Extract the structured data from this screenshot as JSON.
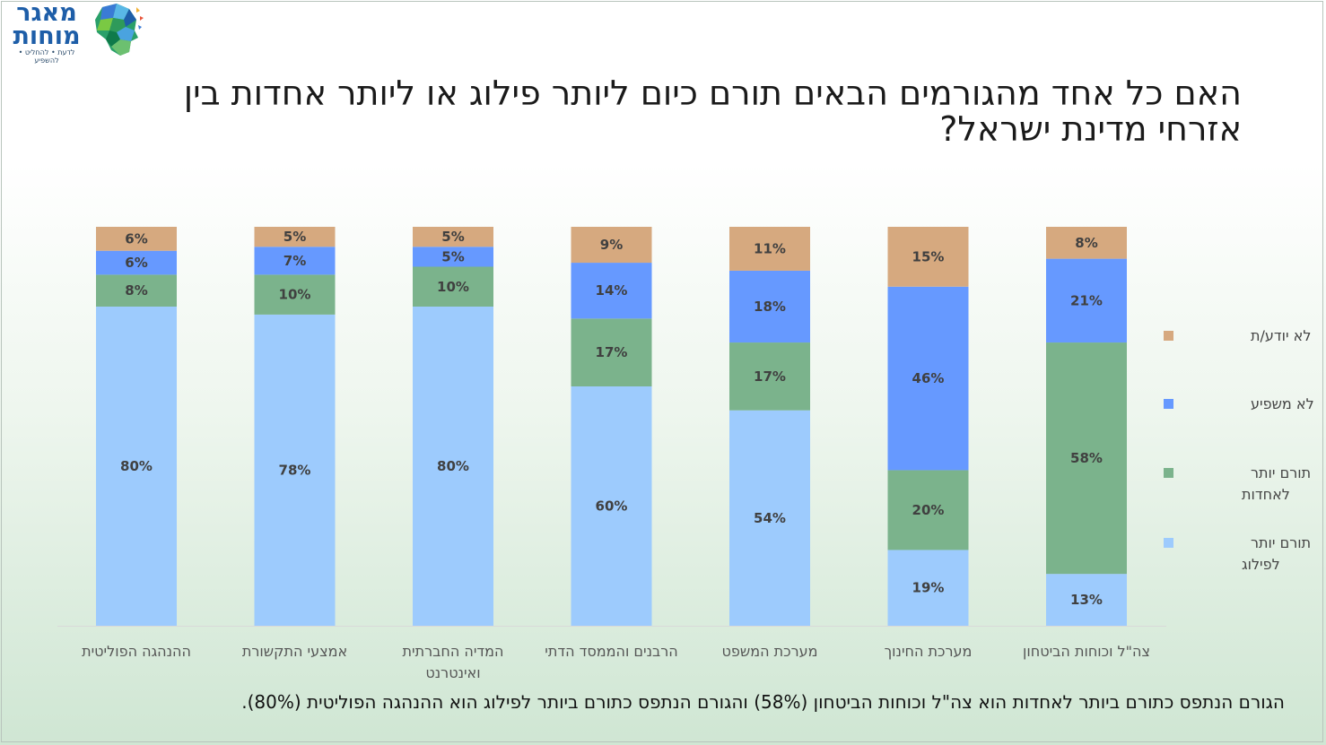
{
  "logo": {
    "name_line1": "מאגר",
    "name_line2": "מוחות",
    "tagline": "לדעת • להחליט • להשפיע"
  },
  "title": "האם כל אחד מהגורמים הבאים תורם כיום ליותר פילוג או ליותר אחדות בין אזרחי מדינת ישראל?",
  "footer": "הגורם הנתפס כתורם ביותר לאחדות הוא צה\"ל וכוחות הביטחון (58%) והגורם הנתפס כתורם ביותר לפילוג הוא ההנהגה הפוליטית (80%).",
  "chart_data": {
    "type": "bar",
    "stacked": true,
    "percent_stacked": true,
    "categories": [
      [
        "ההנהגה הפוליטית"
      ],
      [
        "אמצעי התקשורת"
      ],
      [
        "המדיה החברתית",
        "ואינטרנט"
      ],
      [
        "הרבנים והממסד הדתי"
      ],
      [
        "מערכת המשפט"
      ],
      [
        "מערכת החינוך"
      ],
      [
        "צה\"ל וכוחות הביטחון"
      ]
    ],
    "series": [
      {
        "name": [
          "תורם יותר",
          "לפילוג"
        ],
        "color": "#9dcbfd",
        "values": [
          80,
          78,
          80,
          60,
          54,
          19,
          13
        ]
      },
      {
        "name": [
          "תורם יותר",
          "לאחדות"
        ],
        "color": "#7bb38c",
        "values": [
          8,
          10,
          10,
          17,
          17,
          20,
          58
        ]
      },
      {
        "name": [
          "לא משפיע"
        ],
        "color": "#6699ff",
        "values": [
          6,
          7,
          5,
          14,
          18,
          46,
          21
        ]
      },
      {
        "name": [
          "לא יודע/ת"
        ],
        "color": "#d6a97f",
        "values": [
          6,
          5,
          5,
          9,
          11,
          15,
          8
        ]
      }
    ],
    "value_suffix": "%",
    "legend_position": "right",
    "grid": false
  }
}
